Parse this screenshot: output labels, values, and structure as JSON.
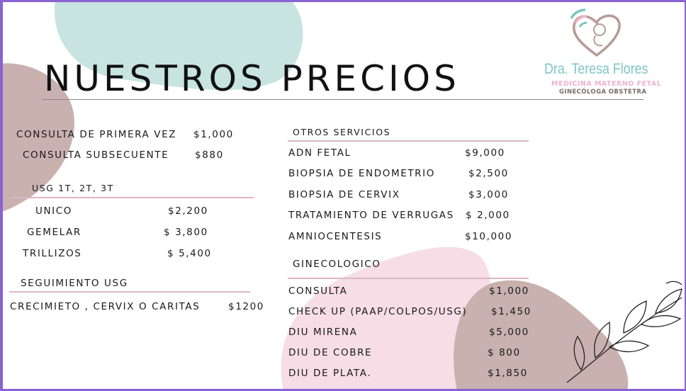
{
  "title": "NUESTROS PRECIOS",
  "logo": {
    "name": "Dra. Teresa Flores",
    "specialty": "MEDICINA MATERNO FETAL",
    "role": "GINECÓLOGA OBSTETRA",
    "icon": "heart-fetus-icon"
  },
  "colors": {
    "border": "#8a63d2",
    "teal": "#c7e4e1",
    "mauve": "#c8b1af",
    "pink": "#f6dde6",
    "rule": "#dcb7c4"
  },
  "consultas": [
    {
      "label": "CONSULTA DE PRIMERA VEZ",
      "price": "$1,000"
    },
    {
      "label": "CONSULTA SUBSECUENTE",
      "price": "$880"
    }
  ],
  "usg": {
    "heading": "USG 1T, 2T, 3T",
    "items": [
      {
        "label": "UNICO",
        "price": "$2,200"
      },
      {
        "label": "GEMELAR",
        "price": "$ 3,800"
      },
      {
        "label": "TRILLIZOS",
        "price": "$ 5,400"
      }
    ]
  },
  "seguimiento": {
    "heading": "SEGUIMIENTO USG",
    "items": [
      {
        "label": "CRECIMIETO , CERVIX O CARITAS",
        "price": "$1200"
      }
    ]
  },
  "otros": {
    "heading": "OTROS SERVICIOS",
    "items": [
      {
        "label": "ADN  FETAL",
        "price": "$9,000"
      },
      {
        "label": "BIOPSIA DE ENDOMETRIO",
        "price": "$2,500"
      },
      {
        "label": "BIOPSIA DE CERVIX",
        "price": "$3,000"
      },
      {
        "label": "TRATAMIENTO DE VERRUGAS",
        "price": "$ 2,000"
      },
      {
        "label": "AMNIOCENTESIS",
        "price": "$10,000"
      }
    ]
  },
  "gineco": {
    "heading": "GINECOLOGICO",
    "items": [
      {
        "label": "CONSULTA",
        "price": "$1,000"
      },
      {
        "label": "CHECK UP (PAAP/COLPOS/USG)",
        "price": "$1,450"
      },
      {
        "label": "DIU MIRENA",
        "price": "$5,000"
      },
      {
        "label": "DIU DE COBRE",
        "price": "$ 800"
      },
      {
        "label": "DIU DE PLATA.",
        "price": "$1,850"
      }
    ]
  }
}
